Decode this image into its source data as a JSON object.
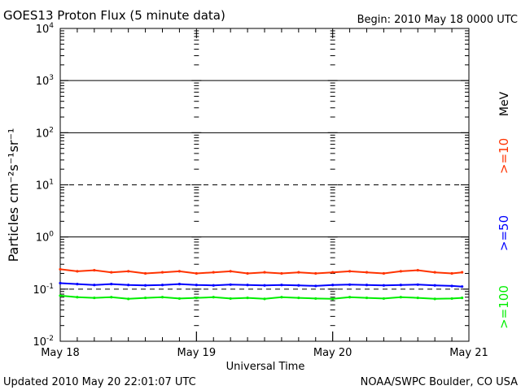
{
  "header": {
    "title": "GOES13 Proton Flux (5 minute data)",
    "begin": "Begin: 2010 May 18 0000 UTC"
  },
  "footer": {
    "updated": "Updated 2010 May 20 22:01:07 UTC",
    "credit": "NOAA/SWPC Boulder, CO USA"
  },
  "colors": {
    "p10": "#ff3300",
    "p50": "#0000ff",
    "p100": "#00ee00",
    "threshold": "#000000"
  },
  "chart_data": {
    "type": "line",
    "title": "GOES13 Proton Flux (5 minute data)",
    "xlabel": "Universal Time",
    "ylabel": "Particles cm⁻²s⁻¹sr⁻¹",
    "yscale": "log",
    "ylim": [
      0.01,
      10000
    ],
    "xlim": [
      0,
      72
    ],
    "x_unit": "hours since 2010 May 18 0000 UTC",
    "xticks": [
      {
        "x": 0,
        "label": "May 18"
      },
      {
        "x": 24,
        "label": "May 19"
      },
      {
        "x": 48,
        "label": "May 20"
      },
      {
        "x": 72,
        "label": "May 21"
      }
    ],
    "yticks": [
      {
        "exp": -2,
        "base": "10",
        "sup": "-2"
      },
      {
        "exp": -1,
        "base": "10",
        "sup": "-1"
      },
      {
        "exp": 0,
        "base": "10",
        "sup": "0"
      },
      {
        "exp": 1,
        "base": "10",
        "sup": "1"
      },
      {
        "exp": 2,
        "base": "10",
        "sup": "2"
      },
      {
        "exp": 3,
        "base": "10",
        "sup": "3"
      },
      {
        "exp": 4,
        "base": "10",
        "sup": "4"
      }
    ],
    "gridlines": [
      {
        "value": 1000,
        "style": "solid"
      },
      {
        "value": 100,
        "style": "solid"
      },
      {
        "value": 10,
        "style": "dashed"
      },
      {
        "value": 1,
        "style": "solid"
      },
      {
        "value": 0.1,
        "style": "dashed"
      }
    ],
    "legend": {
      "unit": "MeV",
      "placement": "right",
      "entries": [
        ">=10",
        ">=50",
        ">=100"
      ]
    },
    "series": [
      {
        "name": ">=10",
        "color": "#ff3300",
        "x": [
          0,
          3,
          6,
          9,
          12,
          15,
          18,
          21,
          24,
          27,
          30,
          33,
          36,
          39,
          42,
          45,
          48,
          51,
          54,
          57,
          60,
          63,
          66,
          69,
          70.8
        ],
        "values": [
          0.24,
          0.22,
          0.23,
          0.21,
          0.22,
          0.2,
          0.21,
          0.22,
          0.2,
          0.21,
          0.22,
          0.2,
          0.21,
          0.2,
          0.21,
          0.2,
          0.21,
          0.22,
          0.21,
          0.2,
          0.22,
          0.23,
          0.21,
          0.2,
          0.21
        ]
      },
      {
        "name": ">=50",
        "color": "#0000ff",
        "x": [
          0,
          3,
          6,
          9,
          12,
          15,
          18,
          21,
          24,
          27,
          30,
          33,
          36,
          39,
          42,
          45,
          48,
          51,
          54,
          57,
          60,
          63,
          66,
          69,
          70.8
        ],
        "values": [
          0.13,
          0.125,
          0.12,
          0.125,
          0.12,
          0.118,
          0.12,
          0.125,
          0.12,
          0.118,
          0.122,
          0.12,
          0.118,
          0.12,
          0.118,
          0.115,
          0.12,
          0.122,
          0.12,
          0.118,
          0.12,
          0.122,
          0.118,
          0.115,
          0.112
        ]
      },
      {
        "name": ">=100",
        "color": "#00ee00",
        "x": [
          0,
          3,
          6,
          9,
          12,
          15,
          18,
          21,
          24,
          27,
          30,
          33,
          36,
          39,
          42,
          45,
          48,
          51,
          54,
          57,
          60,
          63,
          66,
          69,
          70.8
        ],
        "values": [
          0.075,
          0.07,
          0.068,
          0.07,
          0.065,
          0.068,
          0.07,
          0.066,
          0.068,
          0.07,
          0.066,
          0.068,
          0.065,
          0.07,
          0.068,
          0.066,
          0.065,
          0.07,
          0.068,
          0.066,
          0.07,
          0.068,
          0.065,
          0.066,
          0.068
        ]
      }
    ]
  }
}
